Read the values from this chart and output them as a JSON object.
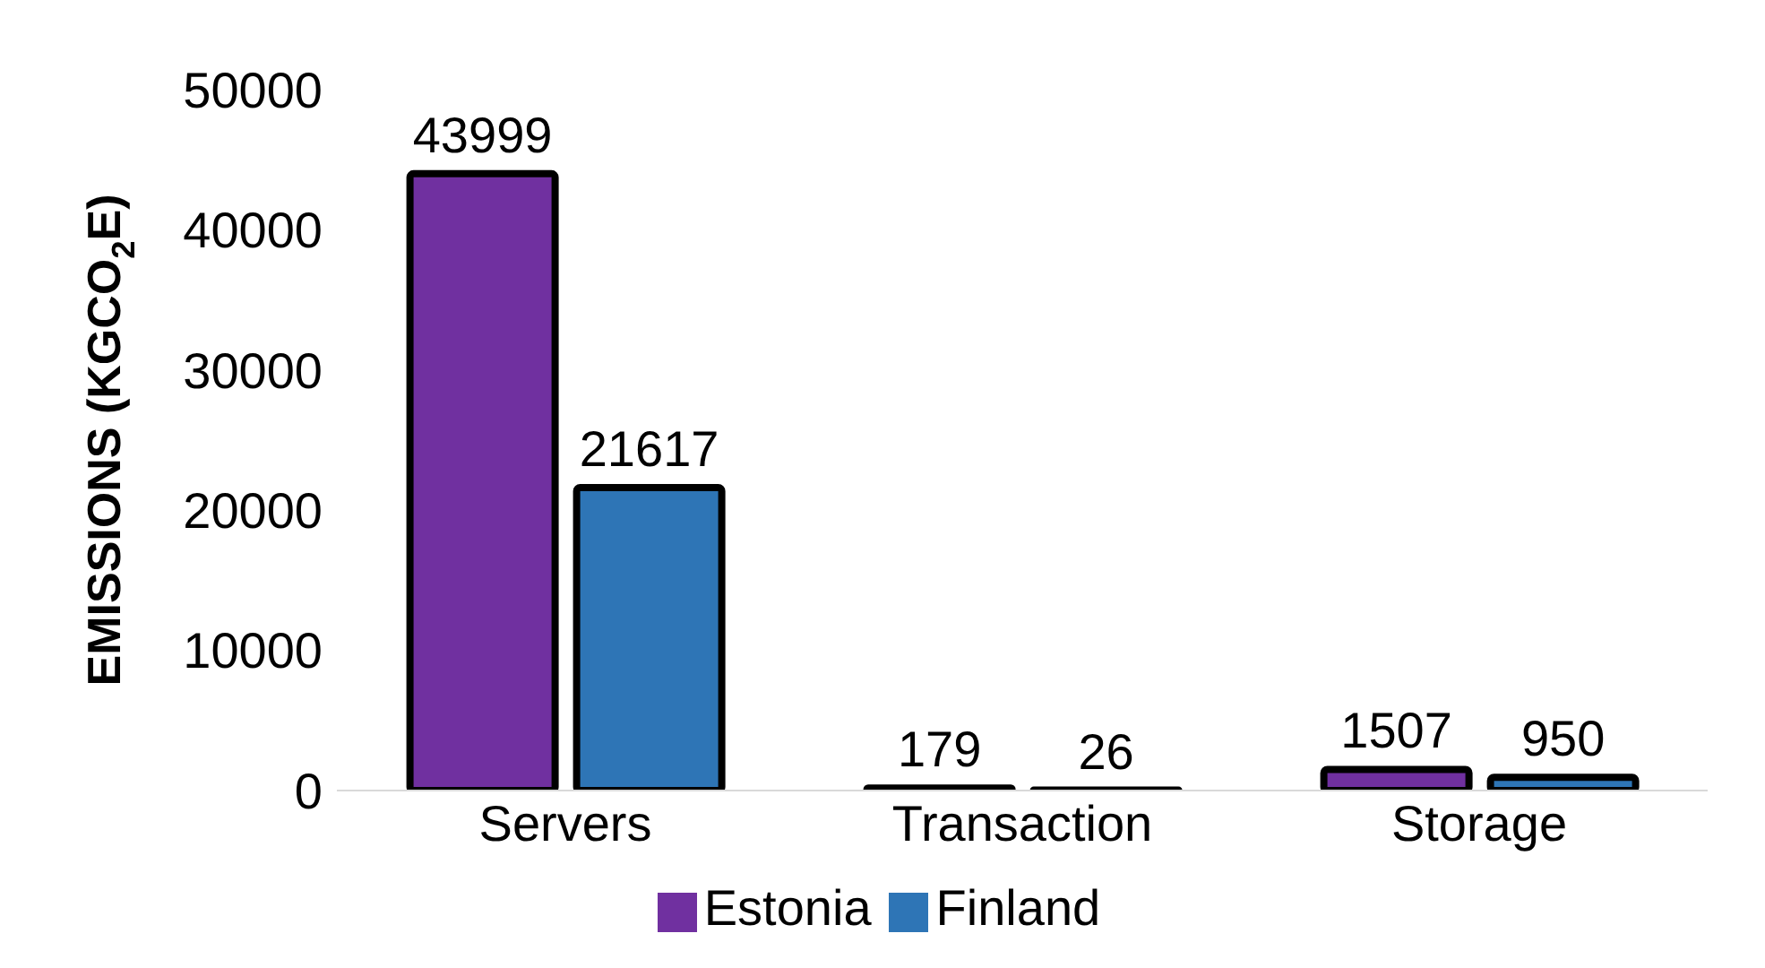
{
  "chart_data": {
    "type": "bar",
    "ylabel": "EMISSIONS (KGCO$_{2}$E)",
    "categories": [
      "Servers",
      "Transaction",
      "Storage"
    ],
    "series": [
      {
        "name": "Estonia",
        "color": "#7030a0",
        "values": [
          43999,
          179,
          1507
        ]
      },
      {
        "name": "Finland",
        "color": "#2e75b6",
        "values": [
          21617,
          26,
          950
        ]
      }
    ],
    "ylim": [
      0,
      50000
    ],
    "yticks": [
      0,
      10000,
      20000,
      30000,
      40000,
      50000
    ],
    "grid": false,
    "legend": "bottom",
    "data_labels": true
  }
}
